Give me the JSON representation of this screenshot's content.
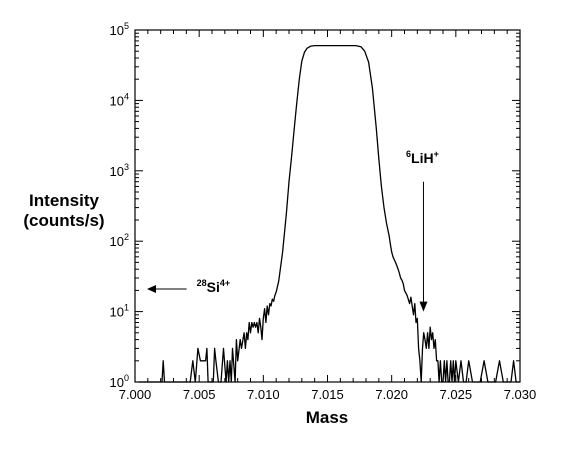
{
  "chart_data": {
    "type": "line",
    "xlabel": "Mass",
    "ylabel_lines": [
      "Intensity",
      "(counts/s)"
    ],
    "xlim": [
      7.0,
      7.03
    ],
    "ylim": [
      1,
      100000
    ],
    "yscale": "log",
    "grid": false,
    "x_ticks": [
      "7.000",
      "7.005",
      "7.010",
      "7.015",
      "7.020",
      "7.025",
      "7.030"
    ],
    "x_tick_values": [
      7.0,
      7.005,
      7.01,
      7.015,
      7.02,
      7.025,
      7.03
    ],
    "y_ticks": [
      {
        "value": 1,
        "base": "10",
        "exp": "0"
      },
      {
        "value": 10,
        "base": "10",
        "exp": "1"
      },
      {
        "value": 100,
        "base": "10",
        "exp": "2"
      },
      {
        "value": 1000,
        "base": "10",
        "exp": "3"
      },
      {
        "value": 10000,
        "base": "10",
        "exp": "4"
      },
      {
        "value": 100000,
        "base": "10",
        "exp": "5"
      }
    ],
    "annotations": [
      {
        "id": "si",
        "sup_left": "28",
        "main": "Si",
        "sup_right": "4+",
        "x": 7.0048,
        "y": 19,
        "arrow": "left"
      },
      {
        "id": "lih",
        "sup_left": "6",
        "main": "LiH",
        "sup_right": "+",
        "x": 7.0224,
        "y": 1300,
        "arrow": "down",
        "arrow_from_y": 700,
        "arrow_to_y": 10
      }
    ],
    "series": [
      {
        "x": [
          7.0003,
          7.0008,
          7.0013,
          7.0018,
          7.0021,
          7.0022,
          7.0023,
          7.0027,
          7.0033,
          7.0038,
          7.0043,
          7.0045,
          7.0047,
          7.0049,
          7.0051,
          7.0053,
          7.0055,
          7.0056,
          7.0057,
          7.0059,
          7.0061,
          7.0062,
          7.0063,
          7.0065,
          7.0067,
          7.0069,
          7.0071,
          7.0072,
          7.0073,
          7.0074,
          7.0075,
          7.0076,
          7.0078,
          7.0079,
          7.008,
          7.0082,
          7.0083,
          7.0085,
          7.0086,
          7.0087,
          7.0088,
          7.0089,
          7.009,
          7.0091,
          7.0092,
          7.0093,
          7.0094,
          7.0095,
          7.0096,
          7.0097,
          7.0098,
          7.0099,
          7.01,
          7.0101,
          7.0102,
          7.0103,
          7.0104,
          7.0105,
          7.0106,
          7.0107,
          7.0108,
          7.0109,
          7.011,
          7.0112,
          7.0115,
          7.0118,
          7.012,
          7.0122,
          7.0124,
          7.0126,
          7.0128,
          7.013,
          7.0132,
          7.0134,
          7.0137,
          7.014,
          7.0143,
          7.0147,
          7.015,
          7.0155,
          7.016,
          7.0165,
          7.0172,
          7.0176,
          7.0179,
          7.0182,
          7.0185,
          7.0188,
          7.019,
          7.0192,
          7.0194,
          7.0196,
          7.0198,
          7.0199,
          7.02,
          7.0201,
          7.0202,
          7.0203,
          7.0204,
          7.0205,
          7.0206,
          7.0207,
          7.0208,
          7.0209,
          7.021,
          7.0212,
          7.0214,
          7.0215,
          7.0216,
          7.0217,
          7.0218,
          7.0219,
          7.022,
          7.0221,
          7.0222,
          7.0223,
          7.0224,
          7.0225,
          7.0226,
          7.0227,
          7.0228,
          7.0229,
          7.023,
          7.0231,
          7.0232,
          7.0233,
          7.0234,
          7.0235,
          7.0236,
          7.0237,
          7.0238,
          7.0239,
          7.024,
          7.0241,
          7.0242,
          7.0243,
          7.0244,
          7.0245,
          7.0246,
          7.0247,
          7.0248,
          7.0249,
          7.025,
          7.0252,
          7.0254,
          7.0256,
          7.0258,
          7.026,
          7.0263,
          7.0266,
          7.0269,
          7.0272,
          7.0275,
          7.0278,
          7.0281,
          7.0284,
          7.0287,
          7.029,
          7.0293,
          7.0295,
          7.0297,
          7.03
        ],
        "y": [
          1,
          1,
          1,
          1,
          1,
          2,
          1,
          1,
          1,
          1,
          1,
          2,
          1,
          3,
          2,
          2,
          2,
          3,
          1,
          1,
          1,
          3,
          2,
          1,
          1,
          3,
          1,
          2,
          1,
          2,
          1,
          3,
          1,
          4,
          2,
          4,
          3,
          5,
          3,
          5,
          4,
          7,
          5,
          7,
          6,
          7,
          6,
          7,
          5,
          8,
          6,
          4,
          8,
          11,
          7,
          12,
          9,
          13,
          12,
          15,
          14,
          17,
          19,
          27,
          70,
          250,
          700,
          1600,
          3800,
          9000,
          20000,
          36000,
          48000,
          55000,
          59000,
          60000,
          60000,
          60000,
          60000,
          60000,
          60000,
          60000,
          60000,
          58000,
          50000,
          35000,
          15000,
          4000,
          1500,
          600,
          300,
          180,
          120,
          90,
          70,
          60,
          55,
          50,
          45,
          40,
          35,
          30,
          28,
          25,
          20,
          17,
          13,
          16,
          12,
          9,
          13,
          7,
          8,
          3,
          2,
          1,
          3,
          5,
          4,
          3,
          5,
          3,
          6,
          4,
          5,
          3,
          4,
          2,
          2,
          1,
          2,
          1,
          1,
          2,
          1,
          2,
          1,
          1,
          2,
          1,
          2,
          1,
          2,
          1,
          2,
          1,
          1,
          2,
          1,
          1,
          1,
          2,
          1,
          1,
          1,
          2,
          1,
          1,
          1,
          2,
          1,
          1
        ]
      }
    ]
  }
}
